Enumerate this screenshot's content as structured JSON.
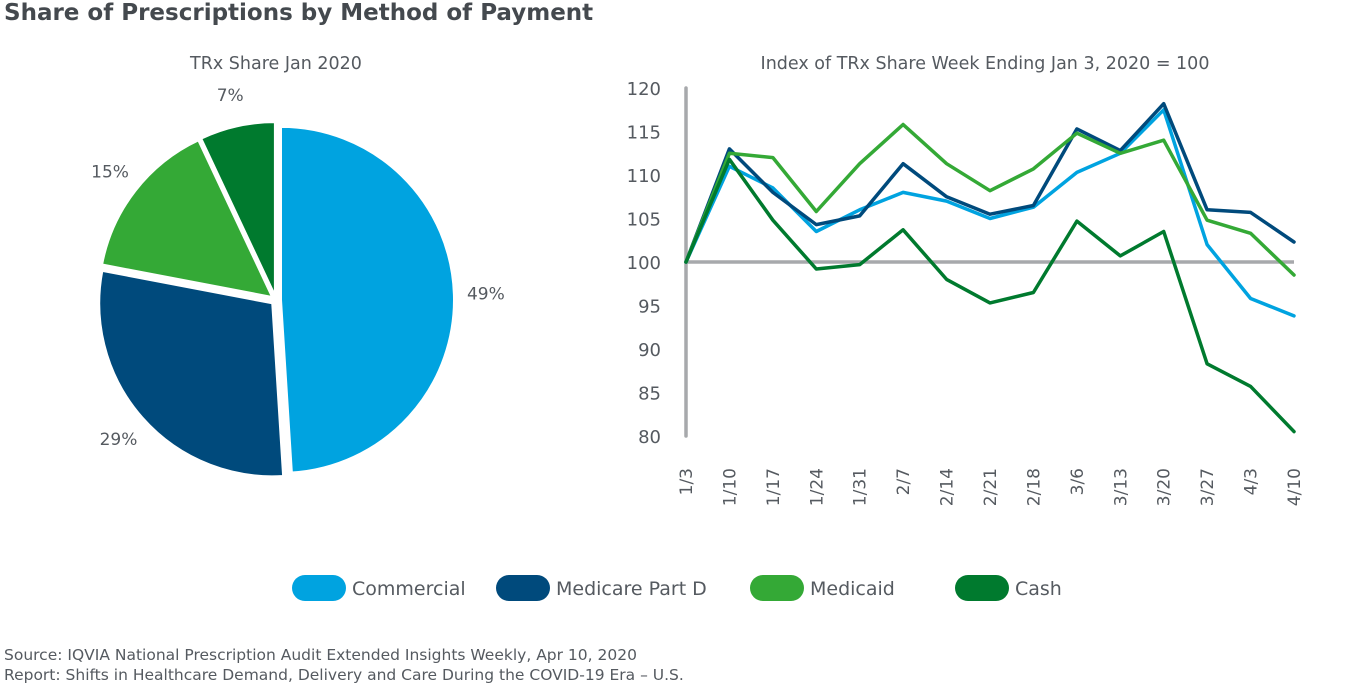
{
  "figure": {
    "title": "Share of Prescriptions by Method of Payment",
    "source_line": "Source: IQVIA National Prescription Audit Extended Insights Weekly, Apr 10, 2020",
    "report_line": "Report: Shifts in Healthcare Demand, Delivery and Care During the COVID-19 Era – U.S."
  },
  "chart_data": [
    {
      "type": "pie",
      "title": "TRx Share Jan 2020",
      "slices": [
        {
          "name": "Commercial",
          "value": 49,
          "label": "49%",
          "color": "#00a3e0"
        },
        {
          "name": "Medicare Part D",
          "value": 29,
          "label": "29%",
          "color": "#004a7c"
        },
        {
          "name": "Medicaid",
          "value": 15,
          "label": "15%",
          "color": "#34a936"
        },
        {
          "name": "Cash",
          "value": 7,
          "label": "7%",
          "color": "#007a2e"
        }
      ]
    },
    {
      "type": "line",
      "title": "Index of TRx Share Week Ending Jan 3, 2020 = 100",
      "xlabel": "",
      "ylabel": "",
      "categories": [
        "1/3",
        "1/10",
        "1/17",
        "1/24",
        "1/31",
        "2/7",
        "2/14",
        "2/21",
        "2/18",
        "3/6",
        "3/13",
        "3/20",
        "3/27",
        "4/3",
        "4/10"
      ],
      "ylim": [
        80,
        120
      ],
      "yticks": [
        80,
        85,
        90,
        95,
        100,
        105,
        110,
        115,
        120
      ],
      "reference_line": 100,
      "grid": false,
      "legend_position": "bottom",
      "series": [
        {
          "name": "Commercial",
          "color": "#00a3e0",
          "values": [
            100,
            111.0,
            108.5,
            103.5,
            106.0,
            108.0,
            107.0,
            105.0,
            106.3,
            110.3,
            112.5,
            117.5,
            102.0,
            95.8,
            93.8
          ]
        },
        {
          "name": "Medicare Part D",
          "color": "#004a7c",
          "values": [
            100,
            113.0,
            108.0,
            104.3,
            105.3,
            111.3,
            107.5,
            105.5,
            106.5,
            115.3,
            112.8,
            118.2,
            106.0,
            105.7,
            102.3
          ]
        },
        {
          "name": "Medicaid",
          "color": "#34a936",
          "values": [
            100,
            112.5,
            112.0,
            105.8,
            111.3,
            115.8,
            111.3,
            108.2,
            110.7,
            114.8,
            112.5,
            114.0,
            104.8,
            103.3,
            98.5
          ]
        },
        {
          "name": "Cash",
          "color": "#007a2e",
          "values": [
            100,
            111.8,
            104.8,
            99.2,
            99.7,
            103.7,
            98.0,
            95.3,
            96.5,
            104.7,
            100.7,
            103.5,
            88.3,
            85.7,
            80.5
          ]
        }
      ]
    }
  ]
}
